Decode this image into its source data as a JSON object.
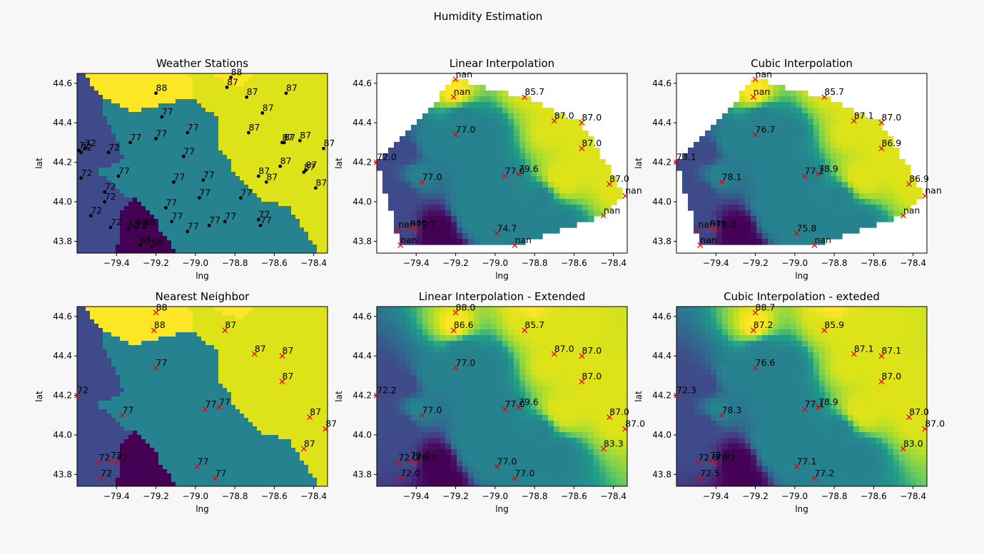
{
  "figure": {
    "title": "Humidity Estimation"
  },
  "chart_data": [
    {
      "id": "p1",
      "type": "scatter",
      "title": "Weather Stations",
      "xlabel": "lng",
      "ylabel": "lat",
      "xlim": [
        -79.6,
        -78.33
      ],
      "ylim": [
        43.74,
        44.65
      ],
      "xticks": [
        "−79.4",
        "−79.2",
        "−79.0",
        "−78.8",
        "−78.6",
        "−78.4"
      ],
      "xtick_values": [
        -79.4,
        -79.2,
        -79.0,
        -78.8,
        -78.6,
        -78.4
      ],
      "yticks": [
        "43.8",
        "44.0",
        "44.2",
        "44.4",
        "44.6"
      ],
      "ytick_values": [
        43.8,
        44.0,
        44.2,
        44.4,
        44.6
      ],
      "marker": "dot",
      "marker_color": "#000000",
      "background": "nearest",
      "points": [
        {
          "x": -78.82,
          "y": 44.63,
          "label": "88"
        },
        {
          "x": -79.2,
          "y": 44.55,
          "label": "88"
        },
        {
          "x": -78.84,
          "y": 44.58,
          "label": "87"
        },
        {
          "x": -78.74,
          "y": 44.53,
          "label": "87"
        },
        {
          "x": -78.54,
          "y": 44.55,
          "label": "87"
        },
        {
          "x": -78.66,
          "y": 44.45,
          "label": "87"
        },
        {
          "x": -78.73,
          "y": 44.35,
          "label": "87"
        },
        {
          "x": -78.56,
          "y": 44.3,
          "label": "87"
        },
        {
          "x": -78.55,
          "y": 44.3,
          "label": "87"
        },
        {
          "x": -78.47,
          "y": 44.31,
          "label": "87"
        },
        {
          "x": -78.35,
          "y": 44.27,
          "label": "87"
        },
        {
          "x": -78.57,
          "y": 44.18,
          "label": "87"
        },
        {
          "x": -78.68,
          "y": 44.13,
          "label": "87"
        },
        {
          "x": -78.64,
          "y": 44.1,
          "label": "87"
        },
        {
          "x": -78.45,
          "y": 44.15,
          "label": "87"
        },
        {
          "x": -78.44,
          "y": 44.16,
          "label": "87"
        },
        {
          "x": -78.39,
          "y": 44.07,
          "label": "87"
        },
        {
          "x": -79.17,
          "y": 44.43,
          "label": "77"
        },
        {
          "x": -79.04,
          "y": 44.35,
          "label": "77"
        },
        {
          "x": -79.2,
          "y": 44.32,
          "label": "77"
        },
        {
          "x": -79.33,
          "y": 44.3,
          "label": "77"
        },
        {
          "x": -79.06,
          "y": 44.23,
          "label": "77"
        },
        {
          "x": -79.39,
          "y": 44.13,
          "label": "77"
        },
        {
          "x": -79.11,
          "y": 44.1,
          "label": "77"
        },
        {
          "x": -78.96,
          "y": 44.11,
          "label": "77"
        },
        {
          "x": -78.98,
          "y": 44.02,
          "label": "77"
        },
        {
          "x": -78.77,
          "y": 44.02,
          "label": "77"
        },
        {
          "x": -79.15,
          "y": 43.97,
          "label": "77"
        },
        {
          "x": -79.12,
          "y": 43.9,
          "label": "77"
        },
        {
          "x": -79.04,
          "y": 43.85,
          "label": "77"
        },
        {
          "x": -78.93,
          "y": 43.88,
          "label": "77"
        },
        {
          "x": -78.85,
          "y": 43.9,
          "label": "77"
        },
        {
          "x": -78.68,
          "y": 43.91,
          "label": "77"
        },
        {
          "x": -78.67,
          "y": 43.88,
          "label": "77"
        },
        {
          "x": -79.56,
          "y": 44.27,
          "label": "72"
        },
        {
          "x": -79.59,
          "y": 44.26,
          "label": "72"
        },
        {
          "x": -79.58,
          "y": 44.25,
          "label": "72"
        },
        {
          "x": -79.44,
          "y": 44.25,
          "label": "72"
        },
        {
          "x": -79.58,
          "y": 44.12,
          "label": "72"
        },
        {
          "x": -79.46,
          "y": 44.05,
          "label": "72"
        },
        {
          "x": -79.46,
          "y": 44.0,
          "label": "72"
        },
        {
          "x": -79.53,
          "y": 43.93,
          "label": "72"
        },
        {
          "x": -79.43,
          "y": 43.87,
          "label": "72"
        },
        {
          "x": -79.34,
          "y": 43.86,
          "label": "68"
        },
        {
          "x": -79.3,
          "y": 43.87,
          "label": "68"
        },
        {
          "x": -79.26,
          "y": 43.87,
          "label": "68"
        },
        {
          "x": -79.28,
          "y": 43.78,
          "label": "68"
        },
        {
          "x": -79.22,
          "y": 43.77,
          "label": "68"
        }
      ]
    },
    {
      "id": "p2",
      "type": "scatter",
      "title": "Linear Interpolation",
      "xlabel": "lng",
      "ylabel": "lat",
      "xlim": [
        -79.6,
        -78.33
      ],
      "ylim": [
        43.74,
        44.65
      ],
      "xticks": [
        "−79.4",
        "−79.2",
        "−79.0",
        "−78.8",
        "−78.6",
        "−78.4"
      ],
      "xtick_values": [
        -79.4,
        -79.2,
        -79.0,
        -78.8,
        -78.6,
        -78.4
      ],
      "yticks": [
        "43.8",
        "44.0",
        "44.2",
        "44.4",
        "44.6"
      ],
      "ytick_values": [
        43.8,
        44.0,
        44.2,
        44.4,
        44.6
      ],
      "marker": "x",
      "marker_color": "#e8000b",
      "background": "convex",
      "points": [
        {
          "x": -79.2,
          "y": 44.62,
          "label": "nan"
        },
        {
          "x": -79.21,
          "y": 44.53,
          "label": "nan"
        },
        {
          "x": -78.85,
          "y": 44.53,
          "label": "85.7"
        },
        {
          "x": -78.7,
          "y": 44.41,
          "label": "87.0"
        },
        {
          "x": -78.56,
          "y": 44.4,
          "label": "87.0"
        },
        {
          "x": -79.2,
          "y": 44.34,
          "label": "77.0"
        },
        {
          "x": -78.56,
          "y": 44.27,
          "label": "87.0"
        },
        {
          "x": -79.6,
          "y": 44.2,
          "label": "72.0"
        },
        {
          "x": -79.37,
          "y": 44.1,
          "label": "77.0"
        },
        {
          "x": -78.95,
          "y": 44.13,
          "label": "77.0"
        },
        {
          "x": -78.88,
          "y": 44.14,
          "label": "79.6"
        },
        {
          "x": -78.42,
          "y": 44.09,
          "label": "87.0"
        },
        {
          "x": -78.34,
          "y": 44.03,
          "label": "nan"
        },
        {
          "x": -78.45,
          "y": 43.93,
          "label": "nan"
        },
        {
          "x": -79.49,
          "y": 43.86,
          "label": "nan"
        },
        {
          "x": -79.43,
          "y": 43.87,
          "label": "nan"
        },
        {
          "x": -79.4,
          "y": 43.86,
          "label": "72.7"
        },
        {
          "x": -78.99,
          "y": 43.84,
          "label": "74.7"
        },
        {
          "x": -79.48,
          "y": 43.78,
          "label": "nan"
        },
        {
          "x": -78.9,
          "y": 43.78,
          "label": "nan"
        }
      ]
    },
    {
      "id": "p3",
      "type": "scatter",
      "title": "Cubic Interpolation",
      "xlabel": "lng",
      "ylabel": "lat",
      "xlim": [
        -79.6,
        -78.33
      ],
      "ylim": [
        43.74,
        44.65
      ],
      "xticks": [
        "−79.4",
        "−79.2",
        "−79.0",
        "−78.8",
        "−78.6",
        "−78.4"
      ],
      "xtick_values": [
        -79.4,
        -79.2,
        -79.0,
        -78.8,
        -78.6,
        -78.4
      ],
      "yticks": [
        "43.8",
        "44.0",
        "44.2",
        "44.4",
        "44.6"
      ],
      "ytick_values": [
        43.8,
        44.0,
        44.2,
        44.4,
        44.6
      ],
      "marker": "x",
      "marker_color": "#e8000b",
      "background": "convex",
      "points": [
        {
          "x": -79.2,
          "y": 44.62,
          "label": "nan"
        },
        {
          "x": -79.21,
          "y": 44.53,
          "label": "nan"
        },
        {
          "x": -78.85,
          "y": 44.53,
          "label": "85.7"
        },
        {
          "x": -78.7,
          "y": 44.41,
          "label": "87.1"
        },
        {
          "x": -78.56,
          "y": 44.4,
          "label": "87.0"
        },
        {
          "x": -79.2,
          "y": 44.34,
          "label": "76.7"
        },
        {
          "x": -78.56,
          "y": 44.27,
          "label": "86.9"
        },
        {
          "x": -79.6,
          "y": 44.2,
          "label": "73.1"
        },
        {
          "x": -79.37,
          "y": 44.1,
          "label": "78.1"
        },
        {
          "x": -78.95,
          "y": 44.13,
          "label": "77.2"
        },
        {
          "x": -78.88,
          "y": 44.14,
          "label": "78.9"
        },
        {
          "x": -78.42,
          "y": 44.09,
          "label": "86.9"
        },
        {
          "x": -78.34,
          "y": 44.03,
          "label": "nan"
        },
        {
          "x": -78.45,
          "y": 43.93,
          "label": "nan"
        },
        {
          "x": -79.49,
          "y": 43.86,
          "label": "nan"
        },
        {
          "x": -79.43,
          "y": 43.87,
          "label": "nan"
        },
        {
          "x": -79.4,
          "y": 43.86,
          "label": "70.3"
        },
        {
          "x": -78.99,
          "y": 43.84,
          "label": "75.8"
        },
        {
          "x": -79.48,
          "y": 43.78,
          "label": "nan"
        },
        {
          "x": -78.9,
          "y": 43.78,
          "label": "nan"
        }
      ]
    },
    {
      "id": "p4",
      "type": "scatter",
      "title": "Nearest Neighbor",
      "xlabel": "lng",
      "ylabel": "lat",
      "xlim": [
        -79.6,
        -78.33
      ],
      "ylim": [
        43.74,
        44.65
      ],
      "xticks": [
        "−79.4",
        "−79.2",
        "−79.0",
        "−78.8",
        "−78.6",
        "−78.4"
      ],
      "xtick_values": [
        -79.4,
        -79.2,
        -79.0,
        -78.8,
        -78.6,
        -78.4
      ],
      "yticks": [
        "43.8",
        "44.0",
        "44.2",
        "44.4",
        "44.6"
      ],
      "ytick_values": [
        43.8,
        44.0,
        44.2,
        44.4,
        44.6
      ],
      "marker": "x",
      "marker_color": "#e8000b",
      "background": "nearest",
      "points": [
        {
          "x": -79.2,
          "y": 44.62,
          "label": "88"
        },
        {
          "x": -79.21,
          "y": 44.53,
          "label": "88"
        },
        {
          "x": -78.85,
          "y": 44.53,
          "label": "87"
        },
        {
          "x": -78.7,
          "y": 44.41,
          "label": "87"
        },
        {
          "x": -78.56,
          "y": 44.4,
          "label": "87"
        },
        {
          "x": -79.2,
          "y": 44.34,
          "label": "77"
        },
        {
          "x": -78.56,
          "y": 44.27,
          "label": "87"
        },
        {
          "x": -79.6,
          "y": 44.2,
          "label": "72"
        },
        {
          "x": -79.37,
          "y": 44.1,
          "label": "77"
        },
        {
          "x": -78.95,
          "y": 44.13,
          "label": "77"
        },
        {
          "x": -78.88,
          "y": 44.14,
          "label": "77"
        },
        {
          "x": -78.42,
          "y": 44.09,
          "label": "87"
        },
        {
          "x": -78.34,
          "y": 44.03,
          "label": "87"
        },
        {
          "x": -78.45,
          "y": 43.93,
          "label": "87"
        },
        {
          "x": -79.49,
          "y": 43.86,
          "label": "72"
        },
        {
          "x": -79.43,
          "y": 43.87,
          "label": "72"
        },
        {
          "x": -79.4,
          "y": 43.86,
          "label": "72"
        },
        {
          "x": -78.99,
          "y": 43.84,
          "label": "77"
        },
        {
          "x": -79.48,
          "y": 43.78,
          "label": "72"
        },
        {
          "x": -78.9,
          "y": 43.78,
          "label": "77"
        }
      ]
    },
    {
      "id": "p5",
      "type": "scatter",
      "title": "Linear Interpolation - Extended",
      "xlabel": "lng",
      "ylabel": "lat",
      "xlim": [
        -79.6,
        -78.33
      ],
      "ylim": [
        43.74,
        44.65
      ],
      "xticks": [
        "−79.4",
        "−79.2",
        "−79.0",
        "−78.8",
        "−78.6",
        "−78.4"
      ],
      "xtick_values": [
        -79.4,
        -79.2,
        -79.0,
        -78.8,
        -78.6,
        -78.4
      ],
      "yticks": [
        "43.8",
        "44.0",
        "44.2",
        "44.4",
        "44.6"
      ],
      "ytick_values": [
        43.8,
        44.0,
        44.2,
        44.4,
        44.6
      ],
      "marker": "x",
      "marker_color": "#e8000b",
      "background": "full",
      "points": [
        {
          "x": -79.2,
          "y": 44.62,
          "label": "88.0"
        },
        {
          "x": -79.21,
          "y": 44.53,
          "label": "86.6"
        },
        {
          "x": -78.85,
          "y": 44.53,
          "label": "85.7"
        },
        {
          "x": -78.7,
          "y": 44.41,
          "label": "87.0"
        },
        {
          "x": -78.56,
          "y": 44.4,
          "label": "87.0"
        },
        {
          "x": -79.2,
          "y": 44.34,
          "label": "77.0"
        },
        {
          "x": -78.56,
          "y": 44.27,
          "label": "87.0"
        },
        {
          "x": -79.6,
          "y": 44.2,
          "label": "72.2"
        },
        {
          "x": -79.37,
          "y": 44.1,
          "label": "77.0"
        },
        {
          "x": -78.95,
          "y": 44.13,
          "label": "77.0"
        },
        {
          "x": -78.88,
          "y": 44.14,
          "label": "79.6"
        },
        {
          "x": -78.42,
          "y": 44.09,
          "label": "87.0"
        },
        {
          "x": -78.34,
          "y": 44.03,
          "label": "87.0"
        },
        {
          "x": -78.45,
          "y": 43.93,
          "label": "83.3"
        },
        {
          "x": -79.49,
          "y": 43.86,
          "label": "72.0"
        },
        {
          "x": -79.43,
          "y": 43.87,
          "label": "72.0"
        },
        {
          "x": -79.4,
          "y": 43.86,
          "label": "70.3"
        },
        {
          "x": -78.99,
          "y": 43.84,
          "label": "77.0"
        },
        {
          "x": -79.48,
          "y": 43.78,
          "label": "72.0"
        },
        {
          "x": -78.9,
          "y": 43.78,
          "label": "77.0"
        }
      ]
    },
    {
      "id": "p6",
      "type": "scatter",
      "title": "Cubic Interpolation - exteded",
      "xlabel": "lng",
      "ylabel": "lat",
      "xlim": [
        -79.6,
        -78.33
      ],
      "ylim": [
        43.74,
        44.65
      ],
      "xticks": [
        "−79.4",
        "−79.2",
        "−79.0",
        "−78.8",
        "−78.6",
        "−78.4"
      ],
      "xtick_values": [
        -79.4,
        -79.2,
        -79.0,
        -78.8,
        -78.6,
        -78.4
      ],
      "yticks": [
        "43.8",
        "44.0",
        "44.2",
        "44.4",
        "44.6"
      ],
      "ytick_values": [
        43.8,
        44.0,
        44.2,
        44.4,
        44.6
      ],
      "marker": "x",
      "marker_color": "#e8000b",
      "background": "full",
      "points": [
        {
          "x": -79.2,
          "y": 44.62,
          "label": "88.7"
        },
        {
          "x": -79.21,
          "y": 44.53,
          "label": "87.2"
        },
        {
          "x": -78.85,
          "y": 44.53,
          "label": "85.9"
        },
        {
          "x": -78.7,
          "y": 44.41,
          "label": "87.1"
        },
        {
          "x": -78.56,
          "y": 44.4,
          "label": "87.1"
        },
        {
          "x": -79.2,
          "y": 44.34,
          "label": "76.6"
        },
        {
          "x": -78.56,
          "y": 44.27,
          "label": "87.0"
        },
        {
          "x": -79.6,
          "y": 44.2,
          "label": "72.3"
        },
        {
          "x": -79.37,
          "y": 44.1,
          "label": "78.3"
        },
        {
          "x": -78.95,
          "y": 44.13,
          "label": "77.1"
        },
        {
          "x": -78.88,
          "y": 44.14,
          "label": "78.9"
        },
        {
          "x": -78.42,
          "y": 44.09,
          "label": "87.0"
        },
        {
          "x": -78.34,
          "y": 44.03,
          "label": "87.0"
        },
        {
          "x": -78.45,
          "y": 43.93,
          "label": "83.0"
        },
        {
          "x": -79.49,
          "y": 43.86,
          "label": "72.8"
        },
        {
          "x": -79.43,
          "y": 43.87,
          "label": "72.0"
        },
        {
          "x": -79.4,
          "y": 43.86,
          "label": "70.2"
        },
        {
          "x": -78.99,
          "y": 43.84,
          "label": "77.1"
        },
        {
          "x": -79.48,
          "y": 43.78,
          "label": "72.5"
        },
        {
          "x": -78.9,
          "y": 43.78,
          "label": "77.2"
        }
      ]
    }
  ],
  "colors": {
    "c68": "#440154",
    "c72": "#3e4a89",
    "c77": "#26828e",
    "c87": "#dde318",
    "c88": "#fde725",
    "page_background": "#f7f7f7"
  }
}
